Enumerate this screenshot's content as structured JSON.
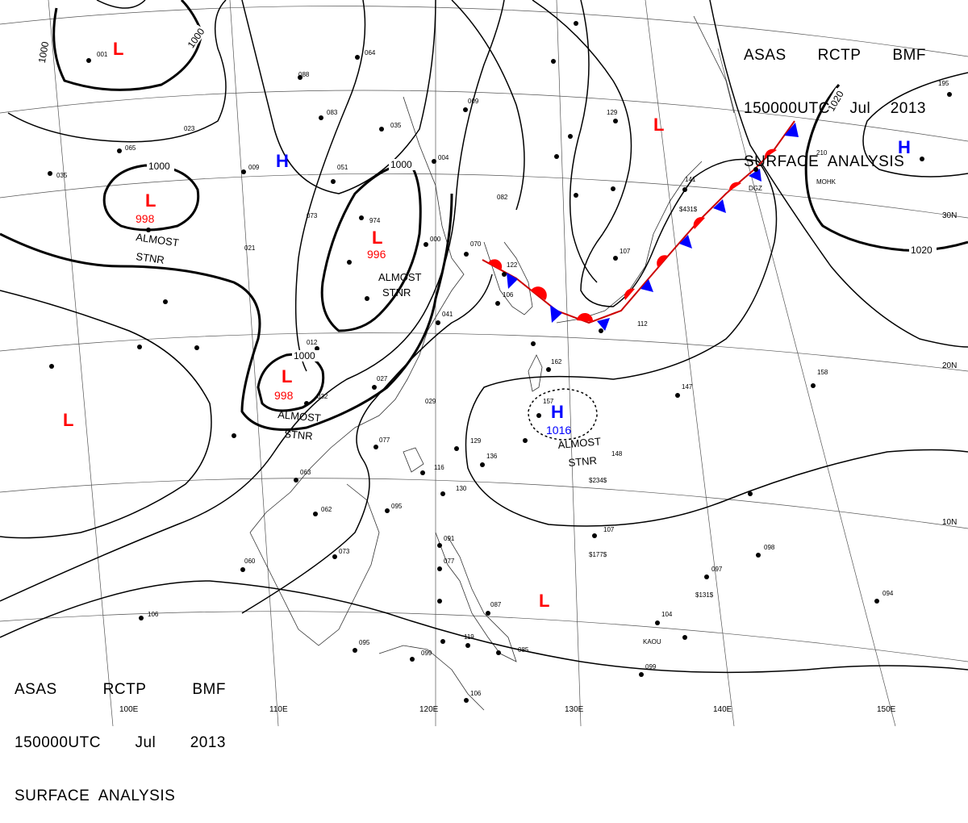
{
  "header": {
    "line1": [
      "ASAS",
      "RCTP",
      "BMF"
    ],
    "line2": [
      "150000UTC",
      "Jul",
      "2013"
    ],
    "line3": "SURFACE  ANALYSIS"
  },
  "footer": {
    "line1": [
      "ASAS",
      "RCTP",
      "BMF"
    ],
    "line2": [
      "150000UTC",
      "Jul",
      "2013"
    ],
    "line3": "SURFACE  ANALYSIS"
  },
  "longitudes": [
    "100E",
    "110E",
    "120E",
    "130E",
    "140E",
    "150E"
  ],
  "latitudes": [
    "30N",
    "20N",
    "10N"
  ],
  "colors": {
    "low": "#ff0000",
    "high": "#0000ff",
    "warm_front": "#ff0000",
    "cold_front": "#0000ff",
    "isobar": "#000000"
  },
  "pressure_centers": [
    {
      "type": "L",
      "value": ""
    },
    {
      "type": "L",
      "value": ""
    },
    {
      "type": "L",
      "value": "998"
    },
    {
      "type": "L",
      "value": "996"
    },
    {
      "type": "L",
      "value": "998"
    },
    {
      "type": "L",
      "value": ""
    },
    {
      "type": "L",
      "value": ""
    },
    {
      "type": "H",
      "value": ""
    },
    {
      "type": "H",
      "value": ""
    },
    {
      "type": "H",
      "value": "1016"
    }
  ],
  "isobar_labels": [
    "1000",
    "1000",
    "1000",
    "1000",
    "1000",
    "1020",
    "1020"
  ],
  "annotations": [
    "ALMOST",
    "STNR",
    "ALMOST",
    "STNR",
    "ALMOST",
    "STNR",
    "ALMOST",
    "STNR"
  ],
  "station_labels": [
    "DGZ",
    "MOHK",
    "KAOU",
    "$431$",
    "$234$",
    "$177$",
    "$131$"
  ],
  "station_values": [
    "001",
    "023",
    "065",
    "035",
    "009",
    "051",
    "073",
    "021",
    "064",
    "088",
    "083",
    "035",
    "009",
    "004",
    "974",
    "000",
    "070",
    "122",
    "106",
    "041",
    "012",
    "032",
    "027",
    "029",
    "077",
    "063",
    "062",
    "073",
    "060",
    "106",
    "095",
    "091",
    "077",
    "087",
    "119",
    "099",
    "085",
    "106",
    "099",
    "082",
    "129",
    "107",
    "141",
    "147",
    "157",
    "148",
    "136",
    "130",
    "116",
    "129",
    "095",
    "158",
    "210",
    "195",
    "112",
    "162",
    "107",
    "097",
    "098",
    "094",
    "104"
  ]
}
